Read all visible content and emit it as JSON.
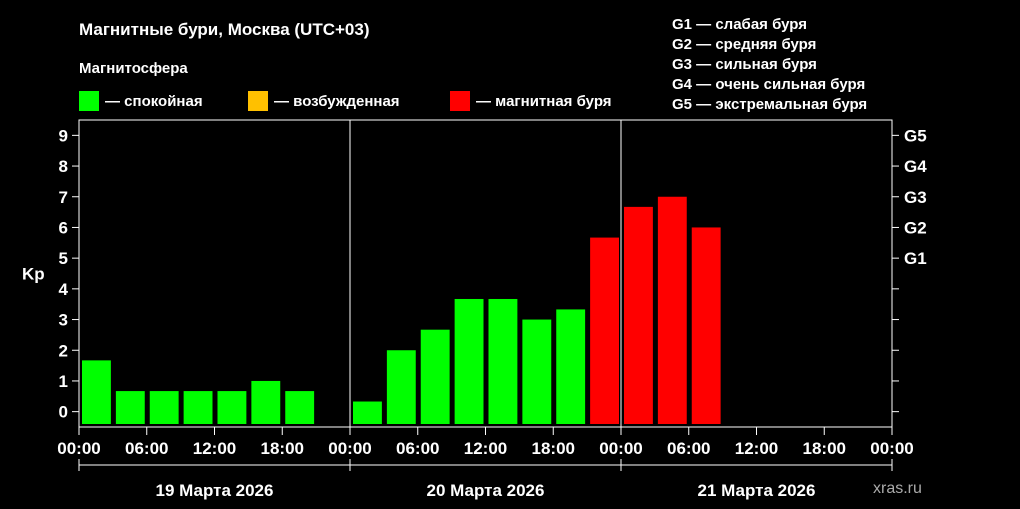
{
  "title": "Магнитные бури, Москва (UTC+03)",
  "legend": {
    "title": "Магнитосфера",
    "items": [
      {
        "label": "— спокойная",
        "color": "#00ff00"
      },
      {
        "label": "— возбужденная",
        "color": "#ffc000"
      },
      {
        "label": "— магнитная буря",
        "color": "#ff0000"
      }
    ]
  },
  "storm_scale": [
    "G1 — слабая буря",
    "G2 — средняя буря",
    "G3 — сильная буря",
    "G4 — очень сильная буря",
    "G5 — экстремальная буря"
  ],
  "watermark": "xras.ru",
  "chart_data": {
    "type": "bar",
    "ylabel": "Kp",
    "ylim": [
      -0.5,
      9.5
    ],
    "yticks": [
      0,
      1,
      2,
      3,
      4,
      5,
      6,
      7,
      8,
      9
    ],
    "right_axis": [
      {
        "label": "G1",
        "kp": 5
      },
      {
        "label": "G2",
        "kp": 6
      },
      {
        "label": "G3",
        "kp": 7
      },
      {
        "label": "G4",
        "kp": 8
      },
      {
        "label": "G5",
        "kp": 9
      }
    ],
    "x_tick_labels": [
      "00:00",
      "06:00",
      "12:00",
      "18:00",
      "00:00",
      "06:00",
      "12:00",
      "18:00",
      "00:00",
      "06:00",
      "12:00",
      "18:00",
      "00:00"
    ],
    "days": [
      "19 Марта 2026",
      "20 Марта 2026",
      "21 Марта 2026"
    ],
    "interval_hours": 3,
    "values": [
      1.67,
      0.67,
      0.67,
      0.67,
      0.67,
      1.0,
      0.67,
      null,
      0.33,
      2.0,
      2.67,
      3.67,
      3.67,
      3.0,
      3.33,
      5.67,
      6.67,
      7.0,
      6.0,
      null,
      null,
      null,
      null,
      null
    ],
    "colors": {
      "quiet": "#00ff00",
      "active": "#ffc000",
      "storm": "#ff0000"
    },
    "grid": false
  }
}
